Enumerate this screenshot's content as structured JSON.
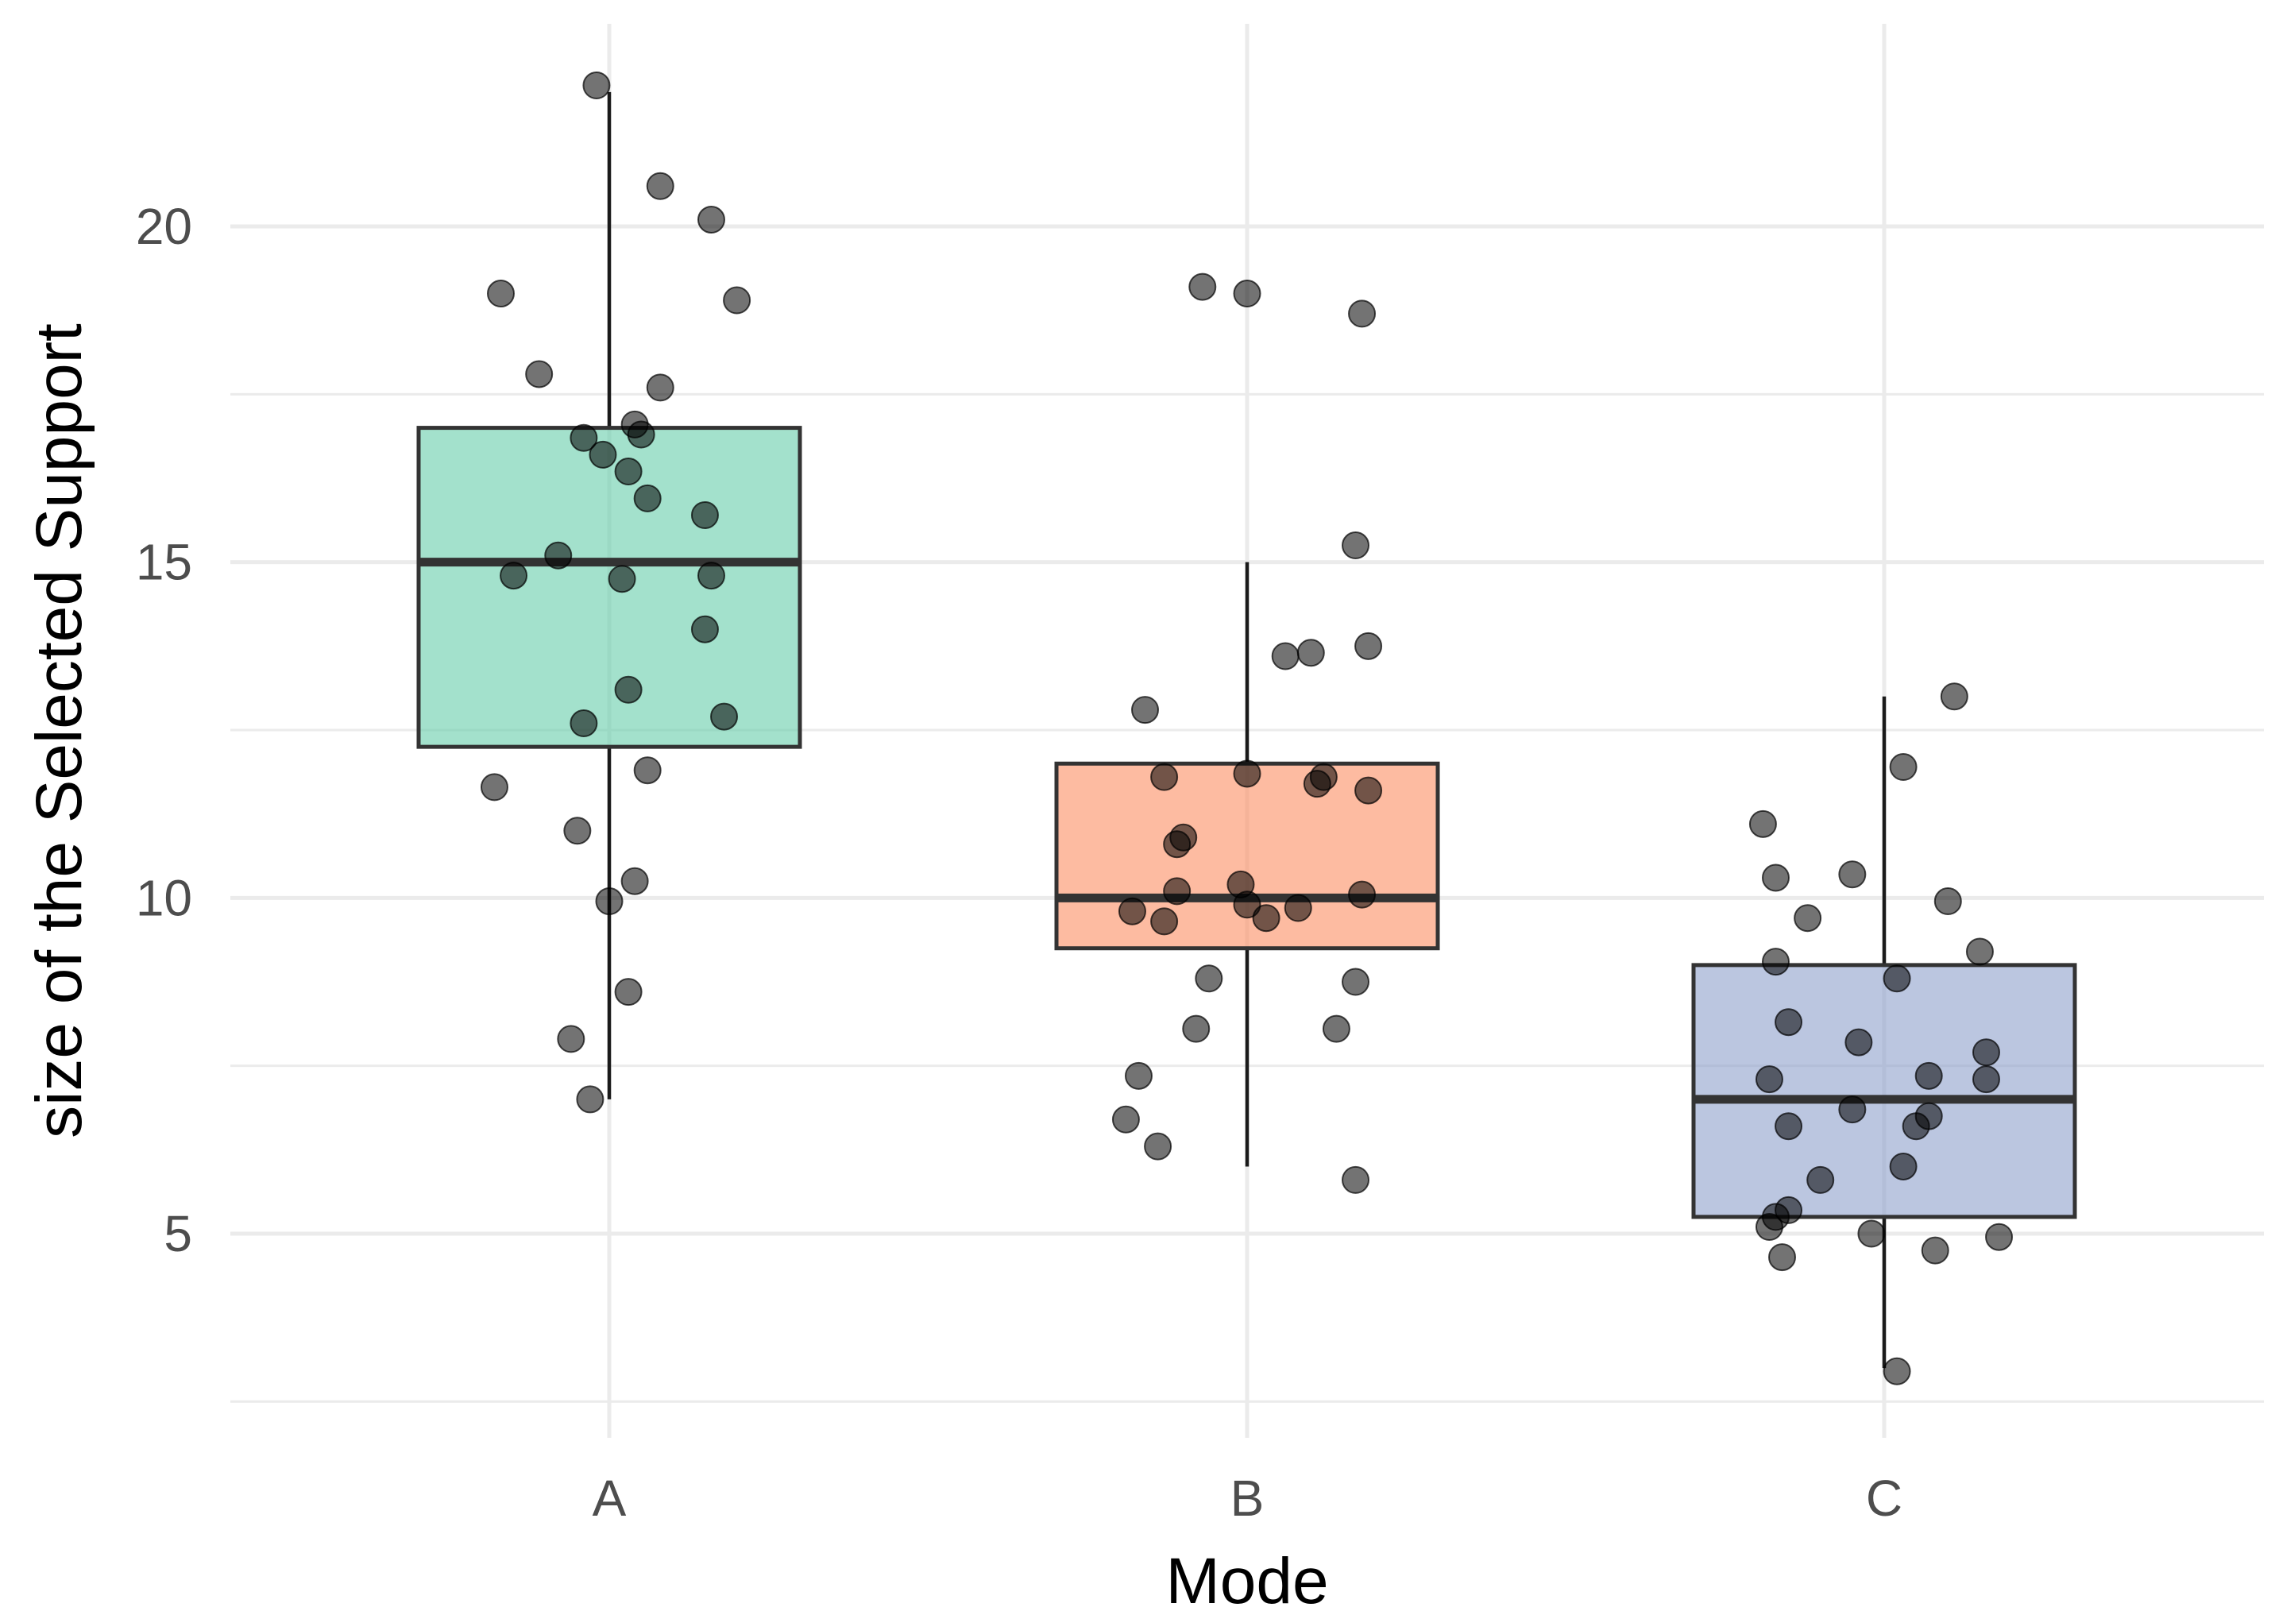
{
  "chart_data": {
    "type": "boxplot",
    "title": "",
    "xlabel": "Mode",
    "ylabel": "size of the Selected Support",
    "categories": [
      "A",
      "B",
      "C"
    ],
    "ylim": [
      2.5,
      23
    ],
    "yticks": [
      5,
      10,
      15,
      20
    ],
    "yminor": [
      7.5,
      12.5,
      17.5,
      2.5
    ],
    "grid": true,
    "legend": "none",
    "boxes": [
      {
        "group": "A",
        "color": "#66CDAA",
        "min": 7,
        "q1": 12.25,
        "median": 15,
        "q3": 17,
        "max": 22
      },
      {
        "group": "B",
        "color": "#FC8D62",
        "min": 6,
        "q1": 9.25,
        "median": 10,
        "q3": 12,
        "max": 15
      },
      {
        "group": "C",
        "color": "#8DA0CB",
        "min": 3,
        "q1": 5.25,
        "median": 7,
        "q3": 9,
        "max": 13
      }
    ],
    "points": [
      {
        "group": "A",
        "jitter": -0.02,
        "y": 22.1
      },
      {
        "group": "A",
        "jitter": 0.08,
        "y": 20.6
      },
      {
        "group": "A",
        "jitter": 0.16,
        "y": 20.1
      },
      {
        "group": "A",
        "jitter": -0.17,
        "y": 19.0
      },
      {
        "group": "A",
        "jitter": 0.2,
        "y": 18.9
      },
      {
        "group": "A",
        "jitter": -0.11,
        "y": 17.8
      },
      {
        "group": "A",
        "jitter": 0.08,
        "y": 17.6
      },
      {
        "group": "A",
        "jitter": 0.04,
        "y": 17.05
      },
      {
        "group": "A",
        "jitter": 0.05,
        "y": 16.9
      },
      {
        "group": "A",
        "jitter": -0.04,
        "y": 16.85
      },
      {
        "group": "A",
        "jitter": -0.01,
        "y": 16.6
      },
      {
        "group": "A",
        "jitter": 0.03,
        "y": 16.35
      },
      {
        "group": "A",
        "jitter": 0.06,
        "y": 15.95
      },
      {
        "group": "A",
        "jitter": 0.15,
        "y": 15.7
      },
      {
        "group": "A",
        "jitter": -0.08,
        "y": 15.1
      },
      {
        "group": "A",
        "jitter": -0.15,
        "y": 14.8
      },
      {
        "group": "A",
        "jitter": 0.02,
        "y": 14.75
      },
      {
        "group": "A",
        "jitter": 0.16,
        "y": 14.8
      },
      {
        "group": "A",
        "jitter": 0.15,
        "y": 14.0
      },
      {
        "group": "A",
        "jitter": 0.03,
        "y": 13.1
      },
      {
        "group": "A",
        "jitter": 0.18,
        "y": 12.7
      },
      {
        "group": "A",
        "jitter": -0.04,
        "y": 12.6
      },
      {
        "group": "A",
        "jitter": 0.06,
        "y": 11.9
      },
      {
        "group": "A",
        "jitter": -0.18,
        "y": 11.65
      },
      {
        "group": "A",
        "jitter": -0.05,
        "y": 11.0
      },
      {
        "group": "A",
        "jitter": 0.04,
        "y": 10.25
      },
      {
        "group": "A",
        "jitter": 0.0,
        "y": 9.95
      },
      {
        "group": "A",
        "jitter": 0.03,
        "y": 8.6
      },
      {
        "group": "A",
        "jitter": -0.06,
        "y": 7.9
      },
      {
        "group": "A",
        "jitter": -0.03,
        "y": 7.0
      },
      {
        "group": "B",
        "jitter": -0.07,
        "y": 19.1
      },
      {
        "group": "B",
        "jitter": 0.0,
        "y": 19.0
      },
      {
        "group": "B",
        "jitter": 0.18,
        "y": 18.7
      },
      {
        "group": "B",
        "jitter": 0.17,
        "y": 15.25
      },
      {
        "group": "B",
        "jitter": 0.19,
        "y": 13.75
      },
      {
        "group": "B",
        "jitter": 0.1,
        "y": 13.65
      },
      {
        "group": "B",
        "jitter": 0.06,
        "y": 13.6
      },
      {
        "group": "B",
        "jitter": -0.16,
        "y": 12.8
      },
      {
        "group": "B",
        "jitter": -0.13,
        "y": 11.8
      },
      {
        "group": "B",
        "jitter": 0.0,
        "y": 11.85
      },
      {
        "group": "B",
        "jitter": 0.12,
        "y": 11.8
      },
      {
        "group": "B",
        "jitter": 0.11,
        "y": 11.7
      },
      {
        "group": "B",
        "jitter": 0.19,
        "y": 11.6
      },
      {
        "group": "B",
        "jitter": -0.1,
        "y": 10.9
      },
      {
        "group": "B",
        "jitter": -0.11,
        "y": 10.8
      },
      {
        "group": "B",
        "jitter": -0.01,
        "y": 10.2
      },
      {
        "group": "B",
        "jitter": -0.11,
        "y": 10.1
      },
      {
        "group": "B",
        "jitter": 0.18,
        "y": 10.05
      },
      {
        "group": "B",
        "jitter": 0.0,
        "y": 9.9
      },
      {
        "group": "B",
        "jitter": 0.08,
        "y": 9.85
      },
      {
        "group": "B",
        "jitter": -0.18,
        "y": 9.8
      },
      {
        "group": "B",
        "jitter": -0.13,
        "y": 9.65
      },
      {
        "group": "B",
        "jitter": 0.03,
        "y": 9.7
      },
      {
        "group": "B",
        "jitter": -0.06,
        "y": 8.8
      },
      {
        "group": "B",
        "jitter": 0.17,
        "y": 8.75
      },
      {
        "group": "B",
        "jitter": -0.08,
        "y": 8.05
      },
      {
        "group": "B",
        "jitter": 0.14,
        "y": 8.05
      },
      {
        "group": "B",
        "jitter": -0.17,
        "y": 7.35
      },
      {
        "group": "B",
        "jitter": -0.19,
        "y": 6.7
      },
      {
        "group": "B",
        "jitter": -0.14,
        "y": 6.3
      },
      {
        "group": "B",
        "jitter": 0.17,
        "y": 5.8
      },
      {
        "group": "C",
        "jitter": 0.11,
        "y": 13.0
      },
      {
        "group": "C",
        "jitter": 0.03,
        "y": 11.95
      },
      {
        "group": "C",
        "jitter": -0.19,
        "y": 11.1
      },
      {
        "group": "C",
        "jitter": -0.17,
        "y": 10.3
      },
      {
        "group": "C",
        "jitter": -0.05,
        "y": 10.35
      },
      {
        "group": "C",
        "jitter": 0.1,
        "y": 9.95
      },
      {
        "group": "C",
        "jitter": -0.12,
        "y": 9.7
      },
      {
        "group": "C",
        "jitter": 0.15,
        "y": 9.2
      },
      {
        "group": "C",
        "jitter": -0.17,
        "y": 9.05
      },
      {
        "group": "C",
        "jitter": 0.02,
        "y": 8.8
      },
      {
        "group": "C",
        "jitter": -0.15,
        "y": 8.15
      },
      {
        "group": "C",
        "jitter": -0.04,
        "y": 7.85
      },
      {
        "group": "C",
        "jitter": 0.16,
        "y": 7.7
      },
      {
        "group": "C",
        "jitter": 0.07,
        "y": 7.35
      },
      {
        "group": "C",
        "jitter": -0.18,
        "y": 7.3
      },
      {
        "group": "C",
        "jitter": 0.16,
        "y": 7.3
      },
      {
        "group": "C",
        "jitter": -0.05,
        "y": 6.85
      },
      {
        "group": "C",
        "jitter": 0.07,
        "y": 6.75
      },
      {
        "group": "C",
        "jitter": -0.15,
        "y": 6.6
      },
      {
        "group": "C",
        "jitter": 0.05,
        "y": 6.6
      },
      {
        "group": "C",
        "jitter": 0.03,
        "y": 6.0
      },
      {
        "group": "C",
        "jitter": -0.1,
        "y": 5.8
      },
      {
        "group": "C",
        "jitter": -0.15,
        "y": 5.35
      },
      {
        "group": "C",
        "jitter": -0.17,
        "y": 5.25
      },
      {
        "group": "C",
        "jitter": -0.18,
        "y": 5.1
      },
      {
        "group": "C",
        "jitter": -0.02,
        "y": 5.0
      },
      {
        "group": "C",
        "jitter": 0.18,
        "y": 4.95
      },
      {
        "group": "C",
        "jitter": 0.08,
        "y": 4.75
      },
      {
        "group": "C",
        "jitter": -0.16,
        "y": 4.65
      },
      {
        "group": "C",
        "jitter": 0.02,
        "y": 2.95
      }
    ]
  }
}
